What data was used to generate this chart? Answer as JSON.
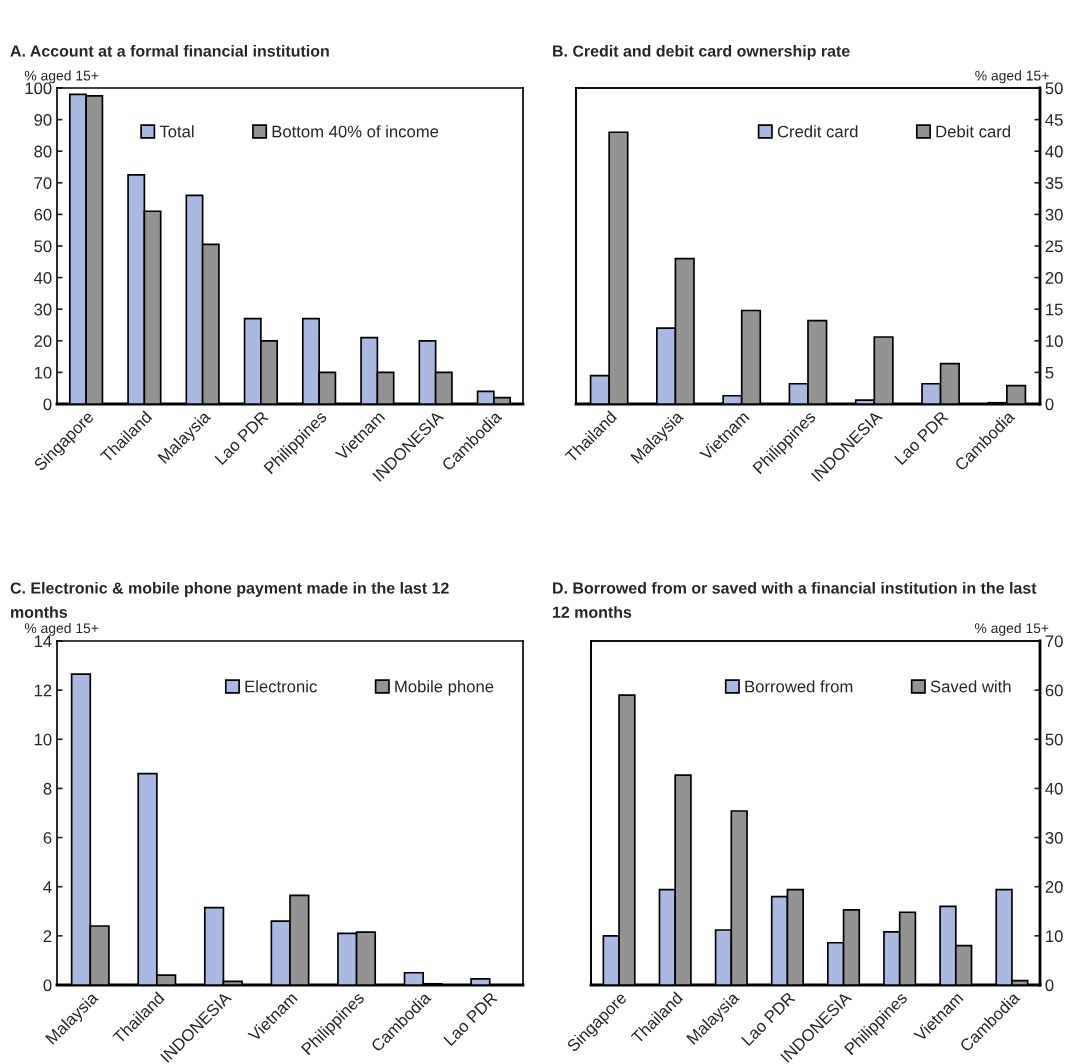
{
  "chart_data": [
    {
      "type": "bar",
      "title": "A. Account at a formal financial institution",
      "ylabel": "% aged 15+",
      "categories": [
        "Singapore",
        "Thailand",
        "Malaysia",
        "Lao PDR",
        "Philippines",
        "Vietnam",
        "INDONESIA",
        "Cambodia"
      ],
      "series": [
        {
          "name": "Total",
          "color": "#a9b9e3",
          "values": [
            98,
            72.5,
            66,
            27,
            27,
            21,
            20,
            4
          ]
        },
        {
          "name": "Bottom 40% of income",
          "color": "#939393",
          "values": [
            97.5,
            61,
            50.5,
            20,
            10,
            10,
            10,
            2
          ]
        }
      ],
      "ylim": [
        0,
        100
      ],
      "yticks": [
        0,
        10,
        20,
        30,
        40,
        50,
        60,
        70,
        80,
        90,
        100
      ],
      "grid": false,
      "legend": "top"
    },
    {
      "type": "bar",
      "title": "B. Credit and debit card ownership rate",
      "y2label": "% aged 15+",
      "categories": [
        "Thailand",
        "Malaysia",
        "Vietnam",
        "Philippines",
        "INDONESIA",
        "Lao PDR",
        "Cambodia"
      ],
      "series": [
        {
          "name": "Credit card",
          "color": "#a9b9e3",
          "axis": "y2",
          "values": [
            4.5,
            12,
            1.3,
            3.2,
            0.6,
            3.2,
            0.2
          ]
        },
        {
          "name": "Debit card",
          "color": "#939393",
          "axis": "y2",
          "values": [
            43,
            23,
            14.8,
            13.2,
            10.6,
            6.4,
            2.9
          ]
        }
      ],
      "y2lim": [
        0,
        50
      ],
      "y2ticks": [
        0,
        5,
        10,
        15,
        20,
        25,
        30,
        35,
        40,
        45,
        50
      ],
      "grid": false,
      "legend": "top right"
    },
    {
      "type": "bar",
      "title": "C. Electronic & mobile phone payment made in the last 12 months",
      "ylabel": "% aged 15+",
      "categories": [
        "Malaysia",
        "Thailand",
        "INDONESIA",
        "Vietnam",
        "Philippines",
        "Cambodia",
        "Lao PDR"
      ],
      "series": [
        {
          "name": "Electronic",
          "color": "#a9b9e3",
          "values": [
            12.65,
            8.6,
            3.15,
            2.6,
            2.1,
            0.5,
            0.25
          ]
        },
        {
          "name": "Mobile phone",
          "color": "#939393",
          "values": [
            2.4,
            0.4,
            0.15,
            3.65,
            2.15,
            0.05,
            null
          ]
        }
      ],
      "ylim": [
        0,
        14
      ],
      "yticks": [
        0,
        2,
        4,
        6,
        8,
        10,
        12,
        14
      ],
      "grid": false,
      "legend": "top right"
    },
    {
      "type": "bar",
      "title": "D. Borrowed from or saved with a financial institution in the last 12 months",
      "y2label": "% aged 15+",
      "categories": [
        "Singapore",
        "Thailand",
        "Malaysia",
        "Lao PDR",
        "INDONESIA",
        "Philippines",
        "Vietnam",
        "Cambodia"
      ],
      "series": [
        {
          "name": "Borrowed from",
          "color": "#a9b9e3",
          "axis": "y2",
          "values": [
            10,
            19.4,
            11.2,
            18,
            8.6,
            10.8,
            16,
            19.4
          ]
        },
        {
          "name": "Saved with",
          "color": "#939393",
          "axis": "y2",
          "values": [
            59,
            42.7,
            35.4,
            19.4,
            15.3,
            14.8,
            8,
            0.9
          ]
        }
      ],
      "y2lim": [
        0,
        70
      ],
      "y2ticks": [
        0,
        10,
        20,
        30,
        40,
        50,
        60,
        70
      ],
      "grid": false,
      "legend": "top right"
    }
  ]
}
